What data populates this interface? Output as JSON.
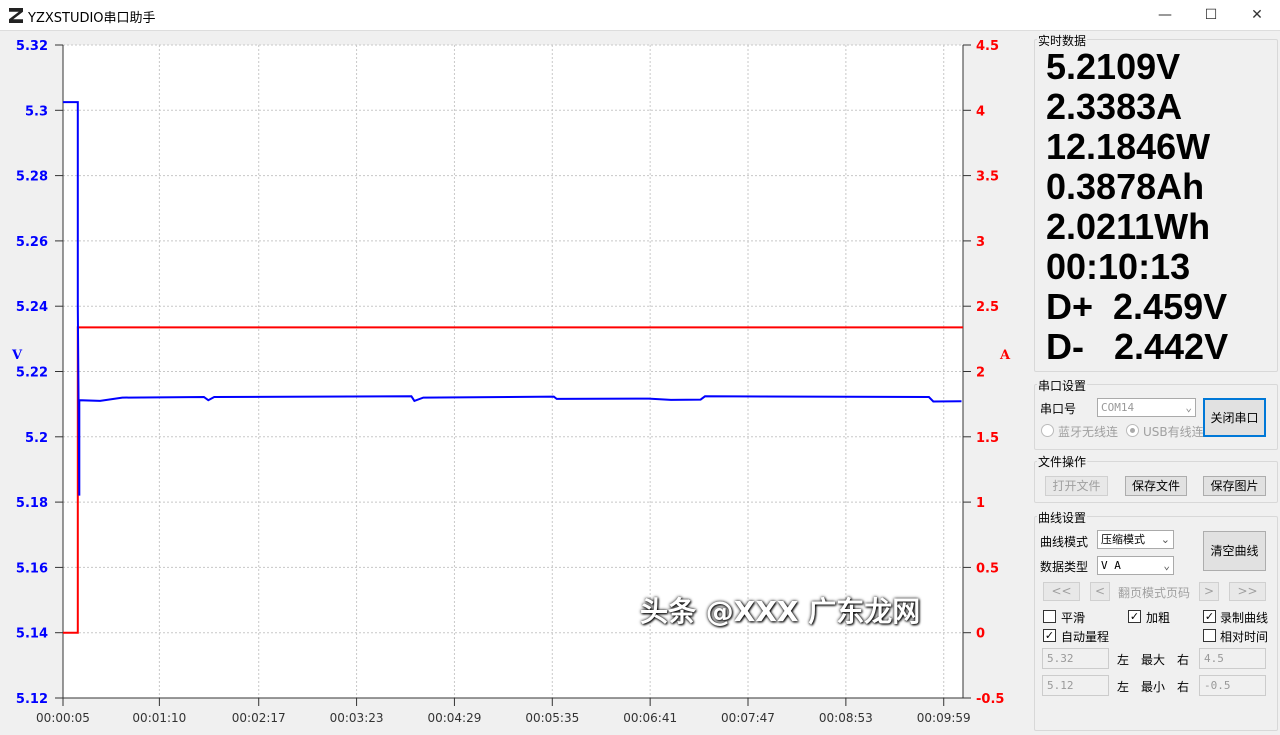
{
  "window": {
    "title": "YZXSTUDIO串口助手",
    "minimize": "—",
    "maximize": "☐",
    "close": "✕"
  },
  "chart_data": {
    "type": "line",
    "ylabel": "V",
    "y2label": "A",
    "ylim": [
      5.12,
      5.32
    ],
    "y2lim": [
      -0.5,
      4.5
    ],
    "xlim": [
      "00:00:05",
      "00:10:12"
    ],
    "yticks": [
      "5.32",
      "5.3",
      "5.28",
      "5.26",
      "5.24",
      "5.22",
      "5.2",
      "5.18",
      "5.16",
      "5.14",
      "5.12"
    ],
    "y2ticks": [
      "4.5",
      "4",
      "3.5",
      "3",
      "2.5",
      "2",
      "1.5",
      "1",
      "0.5",
      "0",
      "-0.5"
    ],
    "xticks": [
      "00:00:05",
      "00:01:10",
      "00:02:17",
      "00:03:23",
      "00:04:29",
      "00:05:35",
      "00:06:41",
      "00:07:47",
      "00:08:53",
      "00:09:59"
    ],
    "grid": true,
    "series": [
      {
        "axis": "left",
        "color": "#0000ff",
        "points": [
          [
            "00:00:05",
            5.3025
          ],
          [
            "00:00:15",
            5.3025
          ],
          [
            "00:00:15",
            5.24
          ],
          [
            "00:00:16",
            5.182
          ],
          [
            "00:00:16",
            5.2112
          ],
          [
            "00:00:30",
            5.211
          ],
          [
            "00:00:45",
            5.212
          ],
          [
            "00:01:40",
            5.2122
          ],
          [
            "00:01:43",
            5.2112
          ],
          [
            "00:01:47",
            5.2122
          ],
          [
            "00:04:00",
            5.2124
          ],
          [
            "00:04:02",
            5.211
          ],
          [
            "00:04:08",
            5.212
          ],
          [
            "00:05:36",
            5.2123
          ],
          [
            "00:05:38",
            5.2116
          ],
          [
            "00:06:40",
            5.2117
          ],
          [
            "00:06:55",
            5.2113
          ],
          [
            "00:07:15",
            5.2114
          ],
          [
            "00:07:18",
            5.2124
          ],
          [
            "00:09:49",
            5.2122
          ],
          [
            "00:09:52",
            5.2108
          ],
          [
            "00:10:11",
            5.2109
          ]
        ]
      },
      {
        "axis": "right",
        "color": "#ff0000",
        "points": [
          [
            "00:00:05",
            0
          ],
          [
            "00:00:15",
            0
          ],
          [
            "00:00:15",
            2.338
          ],
          [
            "00:10:12",
            2.338
          ]
        ]
      }
    ]
  },
  "realtime": {
    "title": "实时数据",
    "values": [
      "5.2109V",
      "2.3383A",
      "12.1846W",
      "0.3878Ah",
      "2.0211Wh",
      "00:10:13",
      "D+  2.459V",
      "D-   2.442V"
    ]
  },
  "serial": {
    "title": "串口设置",
    "port_label": "串口号",
    "port": "COM14",
    "close_btn": "关闭串口",
    "bt": "蓝牙无线连",
    "usb": "USB有线连"
  },
  "file": {
    "title": "文件操作",
    "open": "打开文件",
    "save_file": "保存文件",
    "save_img": "保存图片"
  },
  "curve": {
    "title": "曲线设置",
    "mode_label": "曲线模式",
    "mode": "压缩模式",
    "type_label": "数据类型",
    "type": "V A",
    "clear": "清空曲线",
    "first": "<<",
    "prev": "<",
    "page": "翻页模式页码",
    "next": ">",
    "last": ">>",
    "smooth": "平滑",
    "bold": "加粗",
    "record": "录制曲线",
    "auto": "自动量程",
    "relative": "相对时间",
    "max_left": "5.32",
    "left1": "左",
    "max": "最大",
    "right1": "右",
    "max_right": "4.5",
    "min_left": "5.12",
    "left2": "左",
    "min": "最小",
    "right2": "右",
    "min_right": "-0.5",
    "checked": {
      "smooth": false,
      "bold": true,
      "record": true,
      "auto": true,
      "relative": false
    }
  },
  "watermark": "头条 @XXX 广东龙网"
}
